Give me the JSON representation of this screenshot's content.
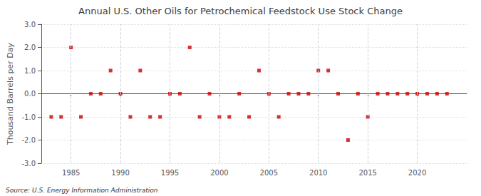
{
  "chart_data": {
    "type": "scatter",
    "title": "Annual U.S. Other Oils for Petrochemical Feedstock Use Stock Change",
    "ylabel": "Thousand Barrels per Day",
    "annotation": "Source: U.S. Energy Information Administration",
    "x": [
      1983,
      1984,
      1985,
      1986,
      1987,
      1988,
      1989,
      1990,
      1991,
      1992,
      1993,
      1994,
      1995,
      1996,
      1997,
      1998,
      1999,
      2000,
      2001,
      2002,
      2003,
      2004,
      2005,
      2006,
      2007,
      2008,
      2009,
      2010,
      2011,
      2012,
      2013,
      2014,
      2015,
      2016,
      2017,
      2018,
      2019,
      2020,
      2021,
      2022,
      2023
    ],
    "values": [
      -1.0,
      -1.0,
      2.0,
      -1.0,
      0.0,
      0.0,
      1.0,
      0.0,
      -1.0,
      1.0,
      -1.0,
      -1.0,
      0.0,
      0.0,
      2.0,
      -1.0,
      0.0,
      -1.0,
      -1.0,
      0.0,
      -1.0,
      1.0,
      0.0,
      -1.0,
      0.0,
      0.0,
      0.0,
      1.0,
      1.0,
      0.0,
      -2.0,
      0.0,
      -1.0,
      0.0,
      0.0,
      0.0,
      0.0,
      0.0,
      0.0,
      0.0,
      0.0
    ],
    "color": "#cc0000",
    "marker": "square",
    "xlim": [
      1982,
      2025
    ],
    "xticks": [
      1985,
      1990,
      1995,
      2000,
      2005,
      2010,
      2015,
      2020
    ],
    "ylim": [
      -3.0,
      3.0
    ],
    "yticks": [
      {
        "value": -3.0,
        "label": "-3.0"
      },
      {
        "value": -2.0,
        "label": "-2.0"
      },
      {
        "value": -1.0,
        "label": "-1.0"
      },
      {
        "value": 0.0,
        "label": "0.0"
      },
      {
        "value": 1.0,
        "label": "1.0"
      },
      {
        "value": 2.0,
        "label": "2.0"
      },
      {
        "value": 3.0,
        "label": "3.0"
      }
    ],
    "grid": true
  }
}
